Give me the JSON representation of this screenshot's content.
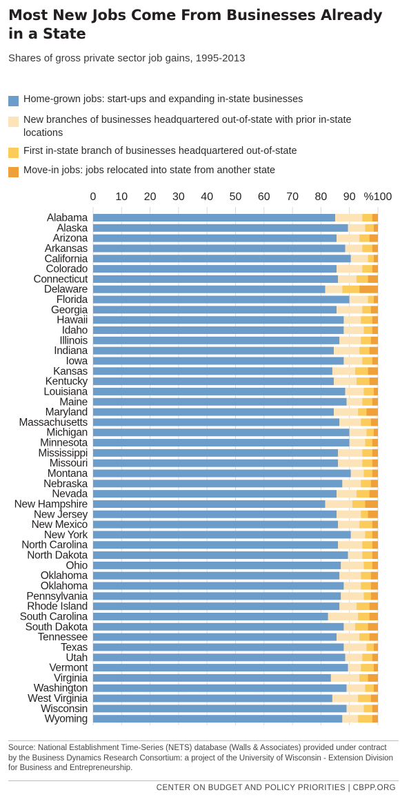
{
  "title": "Most New Jobs Come From Businesses Already in a State",
  "subtitle": "Shares of gross private sector job gains, 1995-2013",
  "legend": [
    {
      "label": "Home-grown jobs: start-ups and expanding in-state businesses",
      "color": "#6c9dca"
    },
    {
      "label": "New branches of businesses headquartered out-of-state with prior in-state locations",
      "color": "#fde4b8"
    },
    {
      "label": "First in-state branch of businesses headquartered out-of-state",
      "color": "#fbcc5c"
    },
    {
      "label": "Move-in jobs: jobs relocated into state from another state",
      "color": "#f0a038"
    }
  ],
  "source": "Source: National Establishment Time-Series (NETS) database (Walls & Associates) provided under contract by the Business Dynamics Research Consortium: a project of the University of Wisconsin - Extension Division for Business and Entrepreneurship.",
  "credit": "CENTER ON BUDGET AND POLICY PRIORITIES | CBPP.ORG",
  "chart_data": {
    "type": "bar",
    "orientation": "horizontal",
    "stacked": true,
    "xlim": [
      0,
      100
    ],
    "ticks": [
      0,
      10,
      20,
      30,
      40,
      50,
      60,
      70,
      80,
      90,
      100
    ],
    "tick_labels": [
      "0",
      "10",
      "20",
      "30",
      "40",
      "50",
      "60",
      "70",
      "80",
      "90",
      "%100"
    ],
    "categories": [
      "Alabama",
      "Alaska",
      "Arizona",
      "Arkansas",
      "California",
      "Colorado",
      "Connecticut",
      "Delaware",
      "Florida",
      "Georgia",
      "Hawaii",
      "Idaho",
      "Illinois",
      "Indiana",
      "Iowa",
      "Kansas",
      "Kentucky",
      "Louisiana",
      "Maine",
      "Maryland",
      "Massachusetts",
      "Michigan",
      "Minnesota",
      "Mississippi",
      "Missouri",
      "Montana",
      "Nebraska",
      "Nevada",
      "New Hampshire",
      "New Jersey",
      "New Mexico",
      "New York",
      "North Carolina",
      "North Dakota",
      "Ohio",
      "Oklahoma",
      "Oklahoma",
      "Pennsylvania",
      "Rhode Island",
      "South Carolina",
      "South Dakota",
      "Tennessee",
      "Texas",
      "Utah",
      "Vermont",
      "Virginia",
      "Washington",
      "West Virginia",
      "Wisconsin",
      "Wyoming"
    ],
    "series": [
      {
        "name": "Home-grown jobs: start-ups and expanding in-state businesses",
        "color": "#6c9dca",
        "values": [
          85,
          89.5,
          85.5,
          88.5,
          90.5,
          85.5,
          86,
          81.5,
          90,
          85.5,
          88,
          88,
          86.5,
          84.5,
          88,
          84,
          84.5,
          88.5,
          89,
          84.5,
          86.5,
          90,
          90,
          86,
          86,
          90.5,
          87.5,
          85.5,
          81.5,
          85.5,
          86,
          90.5,
          86,
          89.5,
          87,
          86.5,
          88,
          87,
          86.5,
          82.5,
          88,
          85.5,
          88,
          88.5,
          89.5,
          83.5,
          89,
          84,
          89,
          87.5
        ]
      },
      {
        "name": "New branches of businesses headquartered out-of-state with prior in-state locations",
        "color": "#fde4b8",
        "values": [
          9.5,
          6,
          8,
          6,
          6,
          9,
          6.5,
          6,
          6.5,
          9,
          6,
          7,
          7.5,
          9,
          6.5,
          8,
          8,
          6.5,
          5.5,
          8.5,
          7.5,
          6,
          5.5,
          8.5,
          8.5,
          4.5,
          6.5,
          7,
          9.5,
          8.5,
          7.5,
          5,
          8.5,
          5,
          8,
          7.5,
          6,
          8,
          6,
          10.5,
          4,
          8,
          8,
          6,
          4.5,
          10,
          6.5,
          9,
          6,
          5.5
        ]
      },
      {
        "name": "First in-state branch of businesses headquartered out-of-state",
        "color": "#fbcc5c",
        "values": [
          3.5,
          3,
          3.5,
          3.5,
          2,
          3.5,
          4,
          6,
          2,
          3,
          4,
          3,
          3.5,
          3.5,
          3.5,
          4.5,
          4.5,
          3.5,
          3.5,
          3,
          3.5,
          2.5,
          2.5,
          3.5,
          3.5,
          3,
          3.5,
          4.5,
          4.5,
          2.5,
          4.5,
          2.5,
          3.5,
          3.5,
          3,
          3.5,
          3.5,
          2.5,
          4.5,
          4,
          4.5,
          3.5,
          2.5,
          3.5,
          4.5,
          3,
          3,
          4.5,
          3,
          5
        ]
      },
      {
        "name": "Move-in jobs: jobs relocated into state from another state",
        "color": "#f0a038",
        "values": [
          2,
          1.5,
          3,
          2,
          1.5,
          2,
          3.5,
          6.5,
          1.5,
          2.5,
          2,
          2,
          2.5,
          3,
          2,
          3.5,
          3,
          1.5,
          2,
          4,
          2.5,
          1.5,
          2,
          2,
          2,
          2,
          2.5,
          3,
          4.5,
          3.5,
          2,
          2,
          2,
          2,
          2,
          2.5,
          2.5,
          2.5,
          3,
          3,
          3.5,
          3,
          1.5,
          2,
          1.5,
          3.5,
          1.5,
          2.5,
          2,
          2
        ]
      }
    ]
  }
}
